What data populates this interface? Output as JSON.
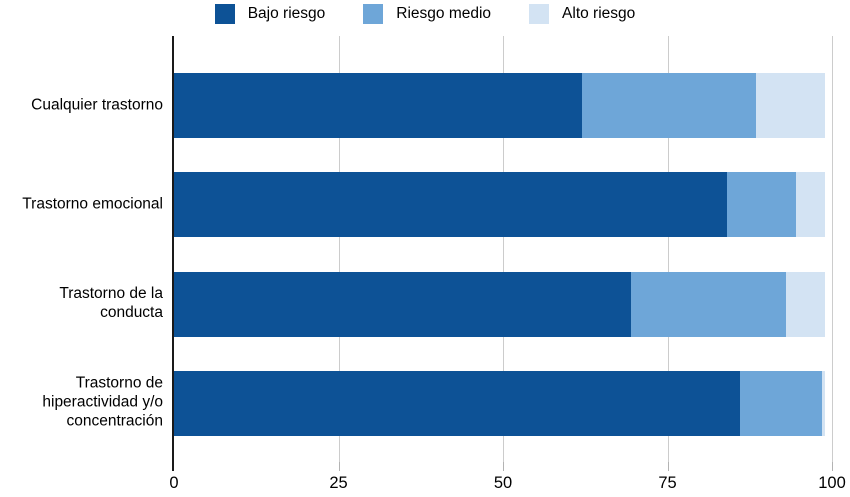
{
  "chart_data": {
    "type": "bar",
    "orientation": "horizontal",
    "stacked": true,
    "categories": [
      "Cualquier trastorno",
      "Trastorno emocional",
      "Trastorno de la conducta",
      "Trastorno de hiperactividad y/o concentración"
    ],
    "series": [
      {
        "name": "Bajo riesgo",
        "color": "#0d5296",
        "values": [
          62,
          84,
          69.5,
          86
        ]
      },
      {
        "name": "Riesgo medio",
        "color": "#6ea6d8",
        "values": [
          26.5,
          10.5,
          23.5,
          12.5
        ]
      },
      {
        "name": "Alto riesgo",
        "color": "#d3e3f3",
        "values": [
          10.5,
          4.5,
          6,
          0.5
        ]
      }
    ],
    "xlim": [
      0,
      100
    ],
    "xticks": [
      "0",
      "25",
      "50",
      "75",
      "100"
    ],
    "legend_position": "top",
    "grid": "vertical",
    "gridline_color": "#cccccc",
    "axis_color": "#1a1a1a",
    "background": "#ffffff",
    "title": "",
    "xlabel": "",
    "ylabel": ""
  }
}
